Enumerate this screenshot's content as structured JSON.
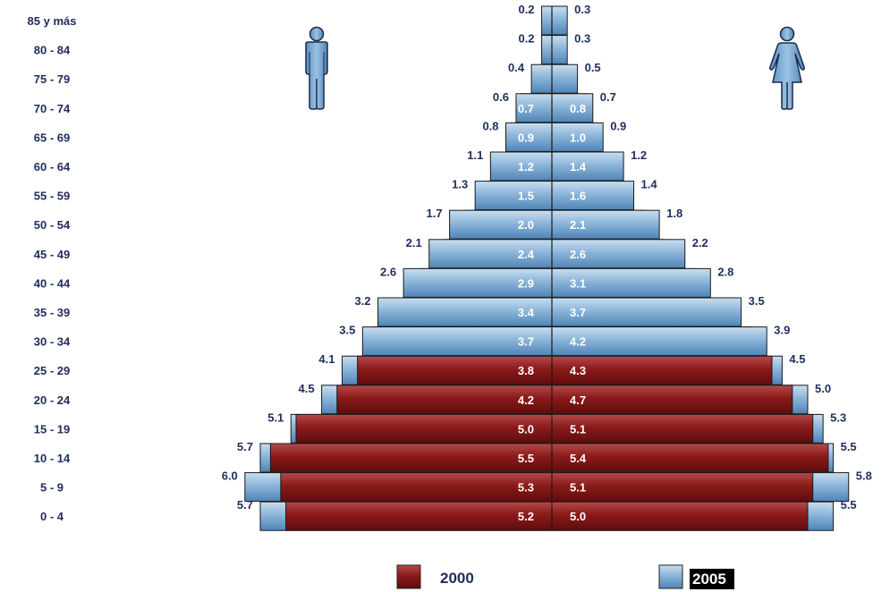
{
  "chart_data": {
    "type": "bar",
    "subtype": "population-pyramid",
    "categories": [
      "85 y más",
      "80 - 84",
      "75 - 79",
      "70 - 74",
      "65 - 69",
      "60 - 64",
      "55 - 59",
      "50 - 54",
      "45 - 49",
      "40 - 44",
      "35 - 39",
      "30 - 34",
      "25 - 29",
      "20 - 24",
      "15 - 19",
      "10 - 14",
      "5 - 9",
      "0 - 4"
    ],
    "series": [
      {
        "name": "2000",
        "color": "#8b1a1a",
        "male": [
          0.2,
          0.2,
          0.4,
          0.6,
          0.8,
          1.1,
          1.3,
          1.7,
          2.1,
          2.6,
          3.2,
          3.5,
          4.1,
          4.5,
          5.1,
          5.7,
          6.0,
          5.7
        ],
        "female": [
          0.3,
          0.3,
          0.5,
          0.7,
          0.9,
          1.2,
          1.4,
          1.8,
          2.2,
          2.8,
          3.5,
          3.9,
          4.5,
          5.0,
          5.3,
          5.5,
          5.8,
          5.5
        ]
      },
      {
        "name": "2005",
        "color": "#7ea9cf",
        "male": [
          null,
          null,
          null,
          0.7,
          0.9,
          1.2,
          1.5,
          2.0,
          2.4,
          2.9,
          3.4,
          3.7,
          3.8,
          4.2,
          5.0,
          5.5,
          5.3,
          5.2
        ],
        "female": [
          null,
          null,
          null,
          0.8,
          1.0,
          1.4,
          1.6,
          2.1,
          2.6,
          3.1,
          3.7,
          4.2,
          4.3,
          4.7,
          5.1,
          5.4,
          5.1,
          5.0
        ]
      }
    ],
    "legend": {
      "position": "bottom",
      "items": [
        "2000",
        "2005"
      ]
    },
    "icons": {
      "left": "male-figure-icon",
      "right": "female-figure-icon"
    },
    "label_color": "#1f2d5c",
    "inner_label_color": "#ffffff",
    "grid": false
  }
}
